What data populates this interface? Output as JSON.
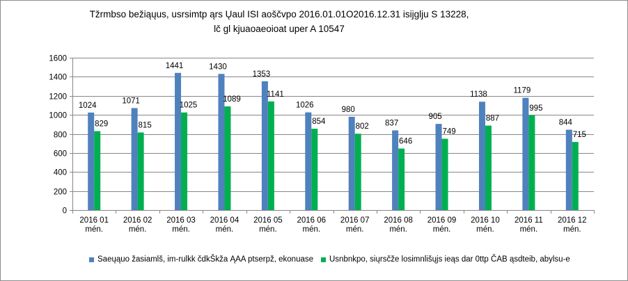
{
  "chart_data": {
    "type": "bar",
    "title_line1": "Tžrmbso bežiąųus, usrsimtp ąrs Ųaul ISI aoščvpo 2016.01.01O2016.12.31  isijglju S 13228,",
    "title_line2": "lč gl kjuaoaeoioat uper A 10547",
    "categories": [
      [
        "2016 01",
        "mén."
      ],
      [
        "2016 02",
        "mén."
      ],
      [
        "2016 03",
        "mén."
      ],
      [
        "2016 04",
        "mén."
      ],
      [
        "2016 05",
        "mén."
      ],
      [
        "2016 06",
        "mén."
      ],
      [
        "2016 07",
        "mén."
      ],
      [
        "2016 08",
        "mén."
      ],
      [
        "2016 09",
        "mén."
      ],
      [
        "2016 10",
        "mén."
      ],
      [
        "2016 11",
        "mén."
      ],
      [
        "2016 12",
        "mén."
      ]
    ],
    "series": [
      {
        "name": "Saeųąuo žasiamlš, im-rulkk čdkŠkža ĄAA ptserpž, ekonuase",
        "color": "#4f81bd",
        "values": [
          1024,
          1071,
          1441,
          1430,
          1353,
          1026,
          980,
          837,
          905,
          1138,
          1179,
          844
        ]
      },
      {
        "name": "Usnbnkpo, siųrsčže losimnlišųjs ieąs dar 0ttp ČAB ąsdteib, abylsu-e",
        "color": "#00b050",
        "values": [
          829,
          815,
          1025,
          1089,
          1141,
          854,
          802,
          646,
          749,
          887,
          995,
          715
        ]
      }
    ],
    "ylim": [
      0,
      1600
    ],
    "yticks": [
      0,
      200,
      400,
      600,
      800,
      1000,
      1200,
      1400,
      1600
    ],
    "grid": true,
    "legend_position": "bottom"
  }
}
